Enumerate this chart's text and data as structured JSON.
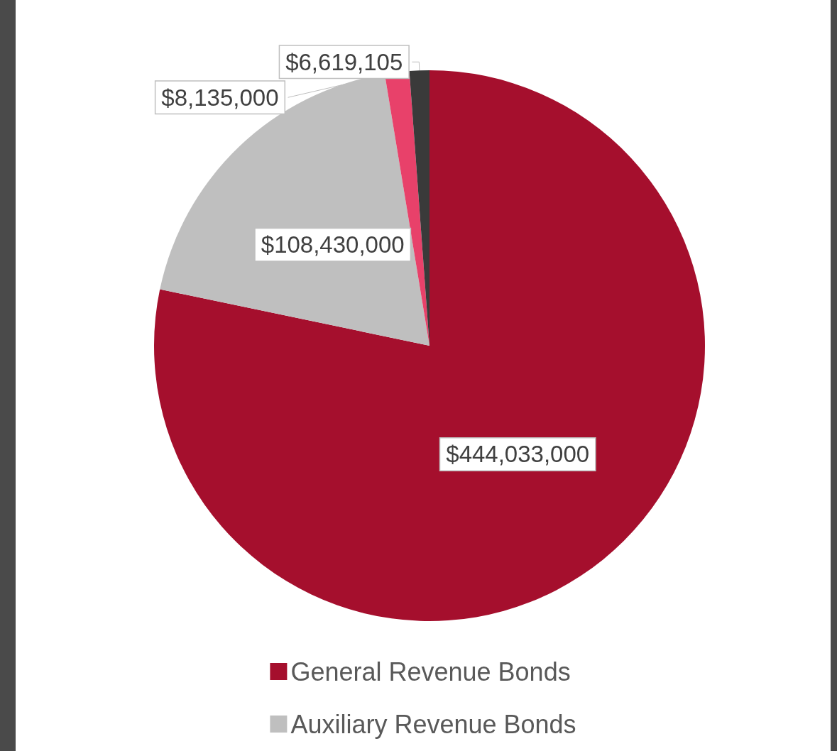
{
  "chart_data": {
    "type": "pie",
    "categories": [
      "General Revenue Bonds",
      "Auxiliary Revenue Bonds",
      null,
      null
    ],
    "values": [
      444033000,
      108430000,
      8135000,
      6619105
    ],
    "value_labels": [
      "$444,033,000",
      "$108,430,000",
      "$8,135,000",
      "$6,619,105"
    ],
    "colors": [
      "#a50f2d",
      "#bfbfbf",
      "#e8416a",
      "#3a3a3a"
    ],
    "legend": "bottom"
  }
}
